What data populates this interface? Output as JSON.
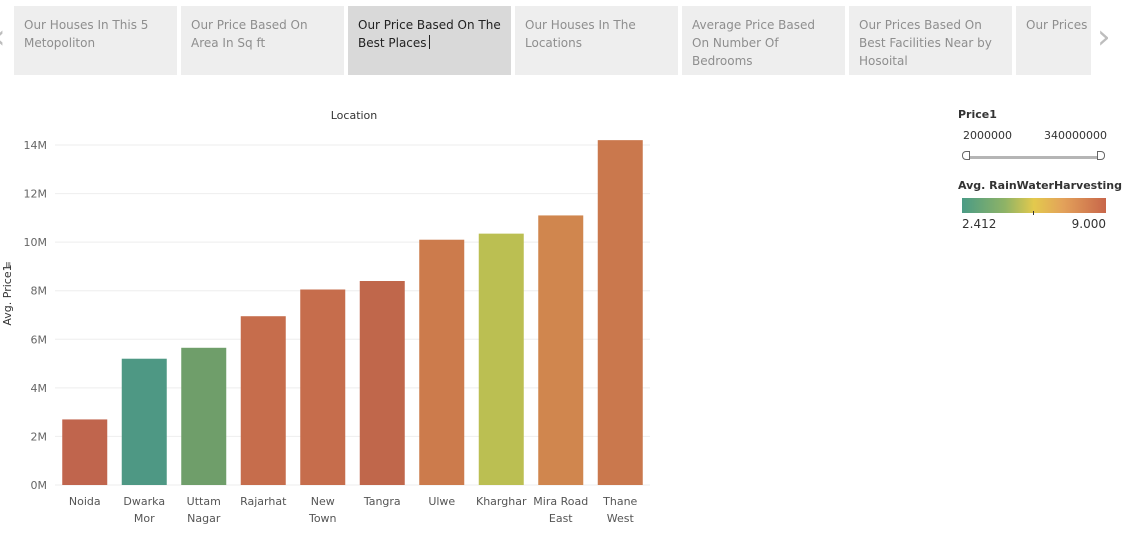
{
  "tabs": [
    {
      "label": "Our Houses In This 5 Metopoliton",
      "active": false
    },
    {
      "label": "Our Price Based On Area In  Sq ft",
      "active": false
    },
    {
      "label": "Our Price Based On The Best Places",
      "active": true
    },
    {
      "label": "Our Houses In The Locations",
      "active": false
    },
    {
      "label": "Average Price Based On Number Of Bedrooms",
      "active": false
    },
    {
      "label": "Our Prices Based On Best Facilities Near by Hosoital",
      "active": false
    },
    {
      "label": "Our Prices Based On Best Facilities Near",
      "active": false
    }
  ],
  "nav": {
    "prev_icon": "chevron-left-icon",
    "next_icon": "chevron-right-icon"
  },
  "chart_data": {
    "type": "bar",
    "title": "Location",
    "ylabel": "Avg. Price1",
    "ylim": [
      0,
      14000000
    ],
    "yticks": [
      "0M",
      "2M",
      "4M",
      "6M",
      "8M",
      "10M",
      "12M",
      "14M"
    ],
    "categories": [
      "Noida",
      "Dwarka Mor",
      "Uttam Nagar",
      "Rajarhat",
      "New Town",
      "Tangra",
      "Ulwe",
      "Kharghar",
      "Mira Road East",
      "Thane West"
    ],
    "category_lines": [
      [
        "Noida"
      ],
      [
        "Dwarka",
        "Mor"
      ],
      [
        "Uttam",
        "Nagar"
      ],
      [
        "Rajarhat"
      ],
      [
        "New",
        "Town"
      ],
      [
        "Tangra"
      ],
      [
        "Ulwe"
      ],
      [
        "Kharghar"
      ],
      [
        "Mira Road",
        "East"
      ],
      [
        "Thane",
        "West"
      ]
    ],
    "values": [
      2700000,
      5200000,
      5650000,
      6950000,
      8050000,
      8400000,
      10100000,
      10350000,
      11100000,
      14200000
    ],
    "colors": [
      "#c0654d",
      "#4e9884",
      "#6f9e6a",
      "#c66d4c",
      "#c66d4c",
      "#c0674b",
      "#cc7b4c",
      "#bbbf52",
      "#d0864e",
      "#ca784d"
    ],
    "grid": true
  },
  "legend": {
    "price_filter_title": "Price1",
    "price_min": "2000000",
    "price_max": "340000000",
    "color_title": "Avg. RainWaterHarvesting",
    "color_min": "2.412",
    "color_max": "9.000"
  }
}
